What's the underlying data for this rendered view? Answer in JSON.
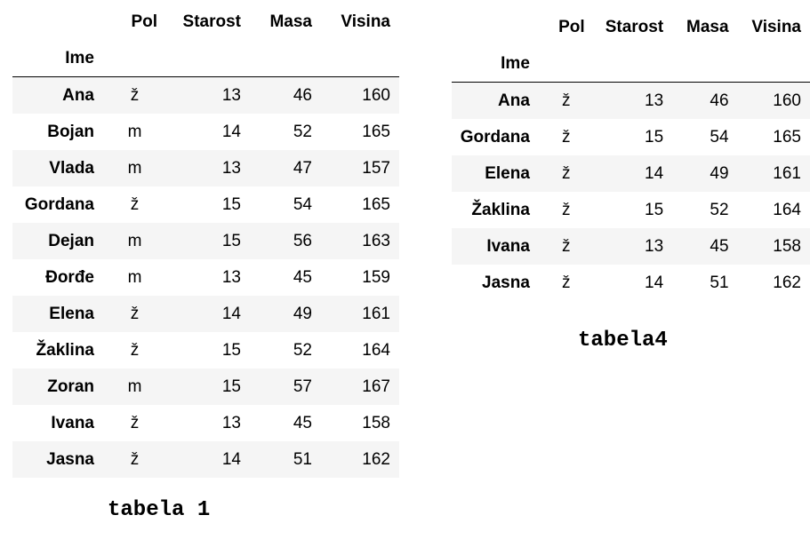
{
  "tables": [
    {
      "caption": "tabela 1",
      "index_name": "Ime",
      "columns": [
        "Pol",
        "Starost",
        "Masa",
        "Visina"
      ],
      "rows": [
        {
          "ime": "Ana",
          "pol": "ž",
          "starost": "13",
          "masa": "46",
          "visina": "160"
        },
        {
          "ime": "Bojan",
          "pol": "m",
          "starost": "14",
          "masa": "52",
          "visina": "165"
        },
        {
          "ime": "Vlada",
          "pol": "m",
          "starost": "13",
          "masa": "47",
          "visina": "157"
        },
        {
          "ime": "Gordana",
          "pol": "ž",
          "starost": "15",
          "masa": "54",
          "visina": "165"
        },
        {
          "ime": "Dejan",
          "pol": "m",
          "starost": "15",
          "masa": "56",
          "visina": "163"
        },
        {
          "ime": "Đorđe",
          "pol": "m",
          "starost": "13",
          "masa": "45",
          "visina": "159"
        },
        {
          "ime": "Elena",
          "pol": "ž",
          "starost": "14",
          "masa": "49",
          "visina": "161"
        },
        {
          "ime": "Žaklina",
          "pol": "ž",
          "starost": "15",
          "masa": "52",
          "visina": "164"
        },
        {
          "ime": "Zoran",
          "pol": "m",
          "starost": "15",
          "masa": "57",
          "visina": "167"
        },
        {
          "ime": "Ivana",
          "pol": "ž",
          "starost": "13",
          "masa": "45",
          "visina": "158"
        },
        {
          "ime": "Jasna",
          "pol": "ž",
          "starost": "14",
          "masa": "51",
          "visina": "162"
        }
      ]
    },
    {
      "caption": "tabela4",
      "index_name": "Ime",
      "columns": [
        "Pol",
        "Starost",
        "Masa",
        "Visina"
      ],
      "rows": [
        {
          "ime": "Ana",
          "pol": "ž",
          "starost": "13",
          "masa": "46",
          "visina": "160"
        },
        {
          "ime": "Gordana",
          "pol": "ž",
          "starost": "15",
          "masa": "54",
          "visina": "165"
        },
        {
          "ime": "Elena",
          "pol": "ž",
          "starost": "14",
          "masa": "49",
          "visina": "161"
        },
        {
          "ime": "Žaklina",
          "pol": "ž",
          "starost": "15",
          "masa": "52",
          "visina": "164"
        },
        {
          "ime": "Ivana",
          "pol": "ž",
          "starost": "13",
          "masa": "45",
          "visina": "158"
        },
        {
          "ime": "Jasna",
          "pol": "ž",
          "starost": "14",
          "masa": "51",
          "visina": "162"
        }
      ]
    }
  ]
}
